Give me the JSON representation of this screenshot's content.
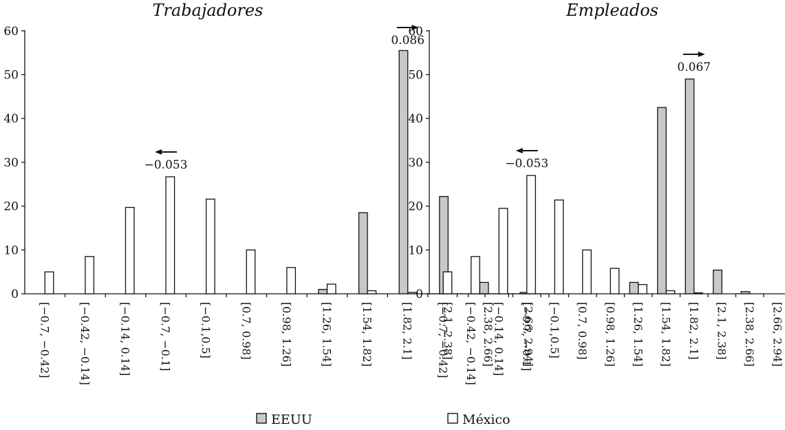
{
  "chart_data": [
    {
      "type": "bar",
      "title": "Trabajadores",
      "xlabel": "",
      "ylabel": "",
      "ylim": [
        0,
        60
      ],
      "yticks": [
        "0",
        "10",
        "20",
        "30",
        "40",
        "50",
        "60"
      ],
      "categories": [
        "[−0.7, −0.42]",
        "[−0.42, −0.14]",
        "[−0.14, 0.14]",
        "[−0.7, −0.1]",
        "[−0.1,0.5]",
        "[0.7, 0.98]",
        "[0.98, 1.26]",
        "[1.26, 1.54]",
        "[1.54, 1.82]",
        "[1.82, 2.1]",
        "[2.1, 2.38]",
        "[2.38, 2.66]",
        "[2.66, 2.94]"
      ],
      "series": [
        {
          "name": "EEUU",
          "color": "#c8c8c8",
          "values": [
            0,
            0,
            0,
            0,
            0,
            0,
            0,
            1,
            18.5,
            55.5,
            22.2,
            2.6,
            0.3
          ]
        },
        {
          "name": "México",
          "color": "#ffffff",
          "values": [
            5,
            8.5,
            19.7,
            26.7,
            21.6,
            10,
            6,
            2.2,
            0.7,
            0.3,
            0,
            0,
            0
          ]
        }
      ],
      "annotations": [
        {
          "text": "−0.053",
          "direction": "left",
          "category_index": 3
        },
        {
          "text": "0.086",
          "direction": "right",
          "category_index": 9
        }
      ]
    },
    {
      "type": "bar",
      "title": "Empleados",
      "xlabel": "",
      "ylabel": "",
      "ylim": [
        0,
        60
      ],
      "yticks": [
        "0",
        "10",
        "20",
        "30",
        "40",
        "50",
        "60"
      ],
      "categories": [
        "[−0.7, −0.42]",
        "[−0.42, −0.14]",
        "[−0.14, 0.14]",
        "[−0.7, −0.1]",
        "[−0.1,0.5]",
        "[0.7, 0.98]",
        "[0.98, 1.26]",
        "[1.26, 1.54]",
        "[1.54, 1.82]",
        "[1.82, 2.1]",
        "[2.1, 2.38]",
        "[2.38, 2.66]",
        "[2.66, 2.94]"
      ],
      "series": [
        {
          "name": "EEUU",
          "color": "#c8c8c8",
          "values": [
            0,
            0,
            0,
            0,
            0,
            0,
            0,
            2.6,
            42.5,
            49,
            5.4,
            0.5,
            0
          ]
        },
        {
          "name": "México",
          "color": "#ffffff",
          "values": [
            5,
            8.5,
            19.5,
            27,
            21.4,
            10,
            5.8,
            2.1,
            0.7,
            0.2,
            0,
            0,
            0
          ]
        }
      ],
      "annotations": [
        {
          "text": "−0.053",
          "direction": "left",
          "category_index": 3
        },
        {
          "text": "0.067",
          "direction": "right",
          "category_index": 9
        }
      ]
    }
  ],
  "legend": [
    {
      "label": "EEUU",
      "color": "#c8c8c8"
    },
    {
      "label": "México",
      "color": "#ffffff"
    }
  ]
}
